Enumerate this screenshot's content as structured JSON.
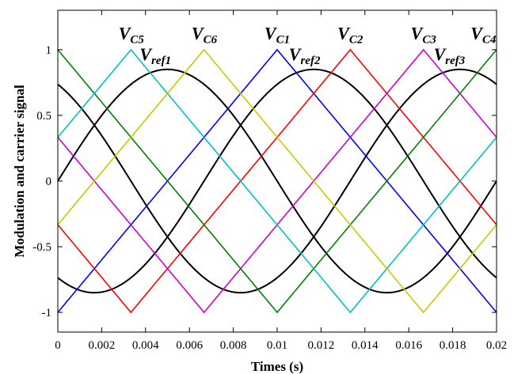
{
  "chart_data": {
    "type": "line",
    "title": "",
    "xlabel": "Times (s)",
    "ylabel": "Modulation and carrier signal",
    "xlim": [
      0,
      0.02
    ],
    "ylim": [
      -1.15,
      1.3
    ],
    "xticks": [
      {
        "v": 0,
        "label": "0"
      },
      {
        "v": 0.002,
        "label": "0.002"
      },
      {
        "v": 0.004,
        "label": "0.004"
      },
      {
        "v": 0.006,
        "label": "0.006"
      },
      {
        "v": 0.008,
        "label": "0.008"
      },
      {
        "v": 0.01,
        "label": "0.01"
      },
      {
        "v": 0.012,
        "label": "0.012"
      },
      {
        "v": 0.014,
        "label": "0.014"
      },
      {
        "v": 0.016,
        "label": "0.016"
      },
      {
        "v": 0.018,
        "label": "0.018"
      },
      {
        "v": 0.02,
        "label": "0.02"
      }
    ],
    "yticks": [
      {
        "v": -1,
        "label": "-1"
      },
      {
        "v": -0.5,
        "label": "-0.5"
      },
      {
        "v": 0,
        "label": "0"
      },
      {
        "v": 0.5,
        "label": "0.5"
      },
      {
        "v": 1,
        "label": "1"
      }
    ],
    "grid": false,
    "legend": "none",
    "series": [
      {
        "name": "Vref1",
        "color": "#000000",
        "amplitude": 0.85,
        "frequency_hz": 50,
        "phase_deg": 0,
        "style": "sine"
      },
      {
        "name": "Vref2",
        "color": "#000000",
        "amplitude": 0.85,
        "frequency_hz": 50,
        "phase_deg": -120,
        "style": "sine"
      },
      {
        "name": "Vref3",
        "color": "#000000",
        "amplitude": 0.85,
        "frequency_hz": 50,
        "phase_deg": 120,
        "style": "sine"
      },
      {
        "name": "VC1",
        "color": "#0000ff",
        "x": [
          0,
          0.01,
          0.02
        ],
        "y": [
          -1,
          1,
          -1
        ]
      },
      {
        "name": "VC2",
        "color": "#ff0000",
        "x": [
          0,
          0.003333,
          0.013333,
          0.02
        ],
        "y": [
          -0.333,
          -1,
          1,
          -0.333
        ]
      },
      {
        "name": "VC3",
        "color": "#cc00cc",
        "x": [
          0,
          0.006667,
          0.016667,
          0.02
        ],
        "y": [
          0.333,
          -1,
          1,
          0.333
        ]
      },
      {
        "name": "VC4",
        "color": "#008000",
        "x": [
          0,
          0.01,
          0.02
        ],
        "y": [
          1,
          -1,
          1
        ]
      },
      {
        "name": "VC5",
        "color": "#00c0c0",
        "x": [
          0,
          0.003333,
          0.013333,
          0.02
        ],
        "y": [
          0.333,
          1,
          -1,
          0.333
        ]
      },
      {
        "name": "VC6",
        "color": "#c8c800",
        "x": [
          0,
          0.006667,
          0.016667,
          0.02
        ],
        "y": [
          -0.333,
          1,
          -1,
          -0.333
        ]
      }
    ],
    "annotations": [
      {
        "base": "V",
        "sub": "C5",
        "x": 0.00335,
        "y": 1.08
      },
      {
        "base": "V",
        "sub": "ref1",
        "x": 0.00445,
        "y": 0.92
      },
      {
        "base": "V",
        "sub": "C6",
        "x": 0.00668,
        "y": 1.08
      },
      {
        "base": "V",
        "sub": "C1",
        "x": 0.01,
        "y": 1.08
      },
      {
        "base": "V",
        "sub": "ref2",
        "x": 0.01125,
        "y": 0.92
      },
      {
        "base": "V",
        "sub": "C2",
        "x": 0.01333,
        "y": 1.08
      },
      {
        "base": "V",
        "sub": "C3",
        "x": 0.01667,
        "y": 1.08
      },
      {
        "base": "V",
        "sub": "C4",
        "x": 0.0194,
        "y": 1.08
      },
      {
        "base": "V",
        "sub": "ref3",
        "x": 0.01785,
        "y": 0.92
      }
    ]
  }
}
